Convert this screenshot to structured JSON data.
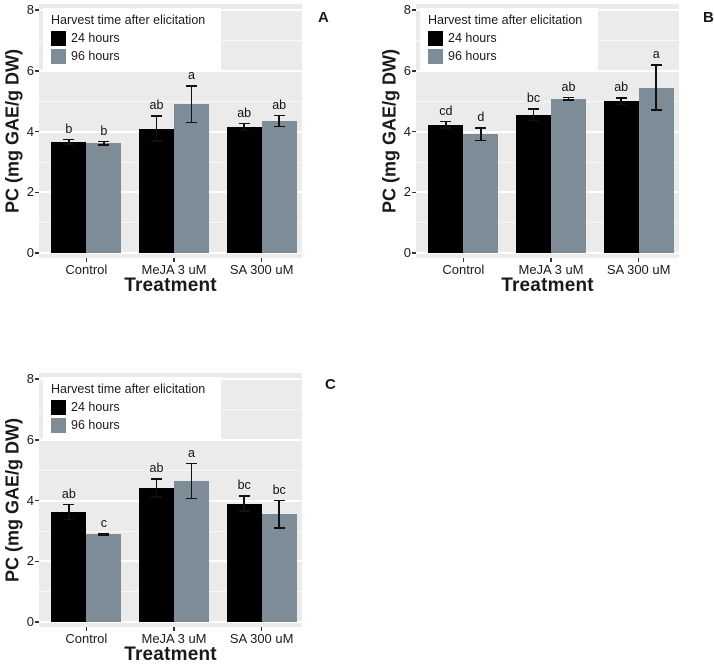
{
  "legend": {
    "title": "Harvest time after elicitation",
    "items": [
      {
        "label": "24 hours",
        "color": "#000000"
      },
      {
        "label": "96 hours",
        "color": "#7D8C96"
      }
    ]
  },
  "axes": {
    "x_title": "Treatment",
    "y_title": "PC (mg GAE/g DW)",
    "y_ticks": [
      0,
      2,
      4,
      6,
      8
    ]
  },
  "colors": {
    "bar_24h": "#000000",
    "bar_96h": "#7D8C96",
    "panel_background": "#EBEBEB",
    "gridline": "#FFFFFF",
    "error_bar": "#111111"
  },
  "chart_data": [
    {
      "type": "bar",
      "panel_label": "A",
      "xlabel": "Treatment",
      "ylabel": "PC (mg GAE/g DW)",
      "ylim": [
        0,
        8
      ],
      "grid": true,
      "legend_position": "top-left-inside",
      "categories": [
        "Control",
        "MeJA 3 uM",
        "SA 300 uM"
      ],
      "series": [
        {
          "name": "24 hours",
          "color": "#000000",
          "values": [
            3.67,
            4.1,
            4.15
          ],
          "errors": [
            0.1,
            0.44,
            0.14
          ],
          "sig_letters": [
            "b",
            "ab",
            "ab"
          ]
        },
        {
          "name": "96 hours",
          "color": "#7D8C96",
          "values": [
            3.62,
            4.9,
            4.35
          ],
          "errors": [
            0.08,
            0.62,
            0.2
          ],
          "sig_letters": [
            "b",
            "a",
            "ab"
          ]
        }
      ]
    },
    {
      "type": "bar",
      "panel_label": "B",
      "xlabel": "Treatment",
      "ylabel": "PC (mg GAE/g DW)",
      "ylim": [
        0,
        8
      ],
      "grid": true,
      "legend_position": "top-left-inside",
      "categories": [
        "Control",
        "MeJA 3 uM",
        "SA 300 uM"
      ],
      "series": [
        {
          "name": "24 hours",
          "color": "#000000",
          "values": [
            4.22,
            4.55,
            5.0
          ],
          "errors": [
            0.13,
            0.21,
            0.13
          ],
          "sig_letters": [
            "cd",
            "bc",
            "ab"
          ]
        },
        {
          "name": "96 hours",
          "color": "#7D8C96",
          "values": [
            3.92,
            5.08,
            5.45
          ],
          "errors": [
            0.23,
            0.07,
            0.77
          ],
          "sig_letters": [
            "d",
            "ab",
            "a"
          ]
        }
      ]
    },
    {
      "type": "bar",
      "panel_label": "C",
      "xlabel": "Treatment",
      "ylabel": "PC (mg GAE/g DW)",
      "ylim": [
        0,
        8
      ],
      "grid": true,
      "legend_position": "top-left-inside",
      "categories": [
        "Control",
        "MeJA 3 uM",
        "SA 300 uM"
      ],
      "series": [
        {
          "name": "24 hours",
          "color": "#000000",
          "values": [
            3.62,
            4.42,
            3.9
          ],
          "errors": [
            0.27,
            0.32,
            0.27
          ],
          "sig_letters": [
            "ab",
            "ab",
            "bc"
          ]
        },
        {
          "name": "96 hours",
          "color": "#7D8C96",
          "values": [
            2.9,
            4.65,
            3.55
          ],
          "errors": [
            0.05,
            0.6,
            0.47
          ],
          "sig_letters": [
            "c",
            "a",
            "bc"
          ]
        }
      ]
    }
  ]
}
